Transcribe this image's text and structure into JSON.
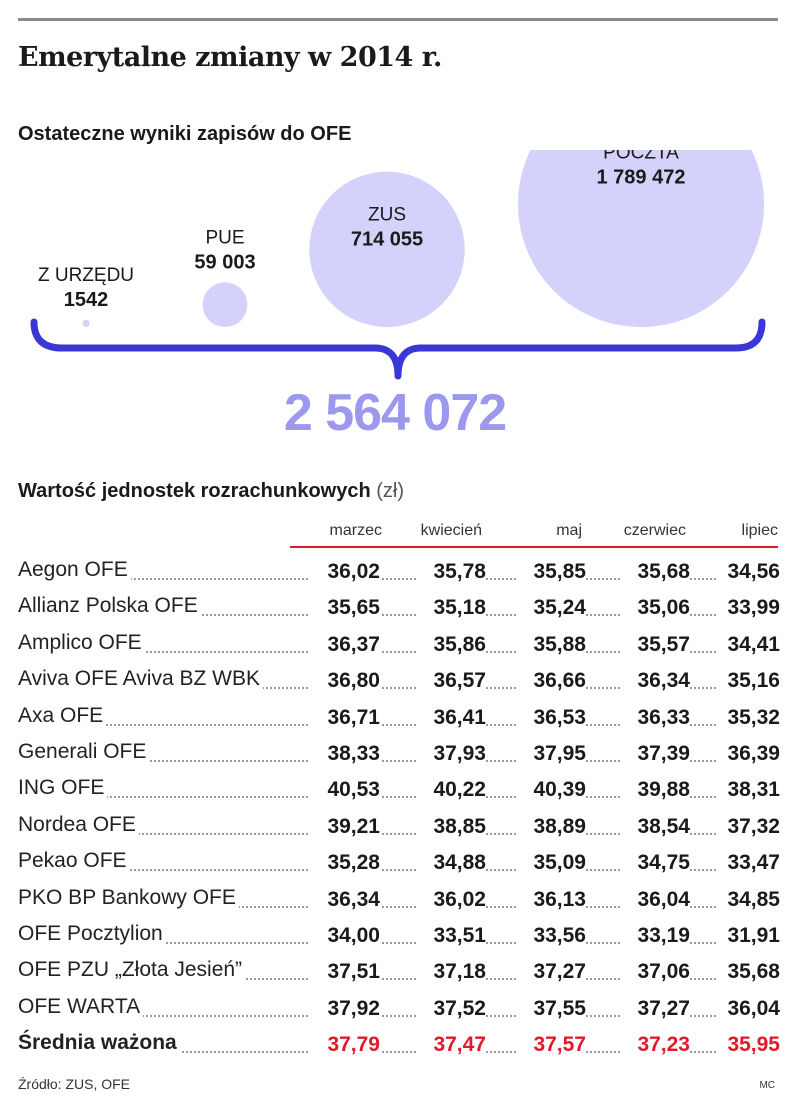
{
  "title": "Emerytalne zmiany w 2014 r.",
  "bubbles_section": {
    "subtitle": "Ostateczne wyniki zapisów do OFE",
    "total": "2 564 072"
  },
  "table_section": {
    "title": "Wartość jednostek rozrachunkowych",
    "unit": "(zł)",
    "months": [
      "marzec",
      "kwiecień",
      "maj",
      "czerwiec",
      "lipiec"
    ],
    "rows": [
      {
        "name": "Aegon OFE",
        "values": [
          "36,02",
          "35,78",
          "35,85",
          "35,68",
          "34,56"
        ]
      },
      {
        "name": "Allianz Polska OFE",
        "values": [
          "35,65",
          "35,18",
          "35,24",
          "35,06",
          "33,99"
        ]
      },
      {
        "name": "Amplico OFE",
        "values": [
          "36,37",
          "35,86",
          "35,88",
          "35,57",
          "34,41"
        ]
      },
      {
        "name": "Aviva OFE Aviva BZ WBK",
        "values": [
          "36,80",
          "36,57",
          "36,66",
          "36,34",
          "35,16"
        ]
      },
      {
        "name": "Axa OFE",
        "values": [
          "36,71",
          "36,41",
          "36,53",
          "36,33",
          "35,32"
        ]
      },
      {
        "name": "Generali OFE",
        "values": [
          "38,33",
          "37,93",
          "37,95",
          "37,39",
          "36,39"
        ]
      },
      {
        "name": "ING OFE",
        "values": [
          "40,53",
          "40,22",
          "40,39",
          "39,88",
          "38,31"
        ]
      },
      {
        "name": "Nordea OFE",
        "values": [
          "39,21",
          "38,85",
          "38,89",
          "38,54",
          "37,32"
        ]
      },
      {
        "name": "Pekao OFE",
        "values": [
          "35,28",
          "34,88",
          "35,09",
          "34,75",
          "33,47"
        ]
      },
      {
        "name": "PKO BP Bankowy OFE",
        "values": [
          "36,34",
          "36,02",
          "36,13",
          "36,04",
          "34,85"
        ]
      },
      {
        "name": "OFE Pocztylion",
        "values": [
          "34,00",
          "33,51",
          "33,56",
          "33,19",
          "31,91"
        ]
      },
      {
        "name": "OFE PZU „Złota Jesień”",
        "values": [
          "37,51",
          "37,18",
          "37,27",
          "37,06",
          "35,68"
        ]
      },
      {
        "name": "OFE WARTA",
        "values": [
          "37,92",
          "37,52",
          "37,55",
          "37,27",
          "36,04"
        ]
      }
    ],
    "average": {
      "name": "Średnia ważona",
      "values": [
        "37,79",
        "37,47",
        "37,57",
        "37,23",
        "35,95"
      ]
    }
  },
  "source": "Źródło: ZUS, OFE",
  "credit": "MC",
  "colors": {
    "bubble_fill": "#d4d2fa",
    "brace": "#3b36d6",
    "total_text": "#9b98ee",
    "accent_red": "#e01a2b"
  },
  "chart_data": {
    "type": "bubble",
    "title": "Ostateczne wyniki zapisów do OFE",
    "categories": [
      "Z URZĘDU",
      "PUE",
      "ZUS",
      "POCZTA"
    ],
    "values": [
      1542,
      59003,
      714055,
      1789472
    ],
    "value_labels": [
      "1542",
      "59 003",
      "714 055",
      "1 789 472"
    ],
    "total": 2564072
  }
}
